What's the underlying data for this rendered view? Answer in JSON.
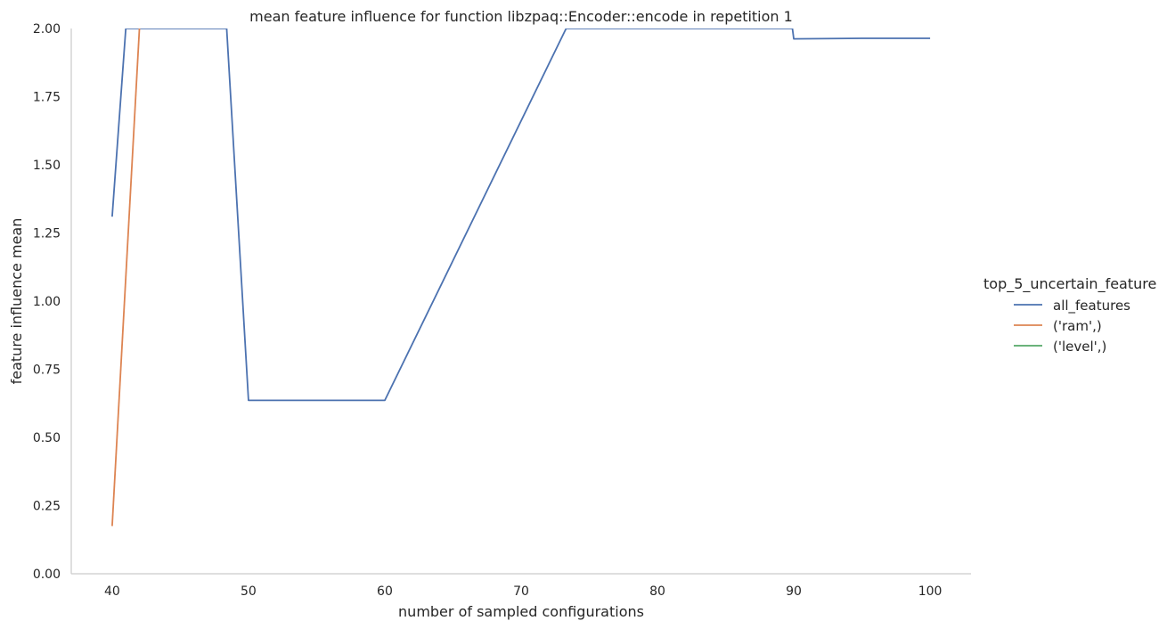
{
  "chart_data": {
    "type": "line",
    "title": "mean feature influence for function libzpaq::Encoder::encode in repetition 1",
    "xlabel": "number of sampled configurations",
    "ylabel": "feature influence mean",
    "xlim": [
      37,
      103
    ],
    "ylim": [
      0,
      2
    ],
    "xticks": [
      40,
      50,
      60,
      70,
      80,
      90,
      100
    ],
    "yticks": [
      "0.00",
      "0.25",
      "0.50",
      "0.75",
      "1.00",
      "1.25",
      "1.50",
      "1.75",
      "2.00"
    ],
    "grid": false,
    "legend_title": "top_5_uncertain_feature",
    "legend_position": "right",
    "series": [
      {
        "name": "all_features",
        "color": "#4c72b0",
        "points": [
          [
            40,
            1.31
          ],
          [
            41,
            2.0
          ],
          [
            48.4,
            2.0
          ],
          [
            50,
            0.636
          ],
          [
            60,
            0.636
          ],
          [
            73.3,
            2.0
          ],
          [
            89.9,
            2.0
          ],
          [
            90,
            1.962
          ],
          [
            95,
            1.964
          ],
          [
            100,
            1.964
          ]
        ]
      },
      {
        "name": "('ram',)",
        "color": "#dd8452",
        "points": [
          [
            40,
            0.175
          ],
          [
            42,
            2.0
          ]
        ]
      },
      {
        "name": "('level',)",
        "color": "#55a868",
        "points": []
      }
    ]
  }
}
